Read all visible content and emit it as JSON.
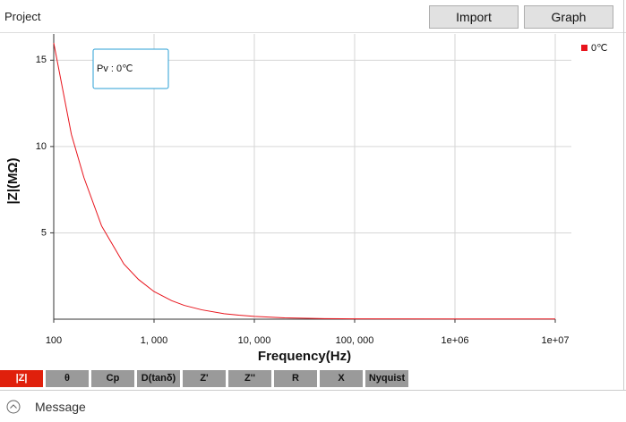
{
  "header": {
    "title": "Project",
    "buttons": [
      "Import",
      "Graph"
    ]
  },
  "chart_data": {
    "type": "line",
    "x_label": "Frequency(Hz)",
    "y_label": "|Z|(MΩ)",
    "annotation": "Pv : 0℃",
    "x": [
      100,
      150,
      200,
      300,
      500,
      700,
      1000,
      1500,
      2000,
      3000,
      5000,
      7000,
      10000,
      20000,
      50000,
      100000,
      1000000,
      10000000
    ],
    "series": [
      {
        "name": "0℃",
        "color": "#e8141c",
        "values": [
          16,
          10.7,
          8.2,
          5.4,
          3.2,
          2.3,
          1.6,
          1.07,
          0.8,
          0.54,
          0.32,
          0.23,
          0.16,
          0.08,
          0.03,
          0.02,
          0.01,
          0.01
        ]
      }
    ],
    "log_x": true,
    "xlim": [
      100,
      10000000
    ],
    "xticks": [
      100,
      {
        "value": 1000,
        "label": "1, 000"
      },
      {
        "value": 10000,
        "label": "10, 000"
      },
      {
        "value": 100000,
        "label": "100, 000"
      },
      {
        "value": 1000000,
        "label": "1e+06"
      },
      {
        "value": 10000000,
        "label": "1e+07"
      }
    ],
    "ylim": [
      0,
      16
    ],
    "yticks": [
      5,
      10,
      15
    ],
    "grid": true,
    "legend": "upper-right"
  },
  "tabs": {
    "items": [
      "|Z|",
      "θ",
      "Cp",
      "D(tanδ)",
      "Z'",
      "Z''",
      "R",
      "X",
      "Nyquist"
    ],
    "active": 0
  },
  "message": {
    "label": "Message"
  }
}
